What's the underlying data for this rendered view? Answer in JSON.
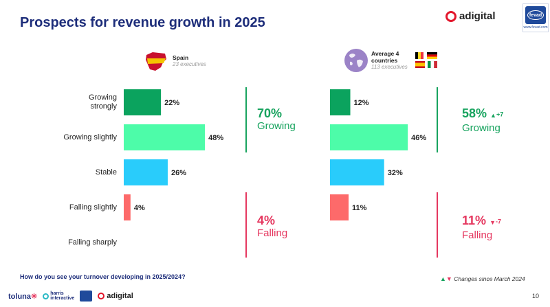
{
  "title": "Prospects for revenue growth in 2025",
  "brand": {
    "adigital": "adigital",
    "fevad_badge": "fevad",
    "fevad_url": "www.fevad.com",
    "toluna": "toluna",
    "harris_line1": "harris",
    "harris_line2": "interactive",
    "adigital_footer": "adigital"
  },
  "groups": {
    "spain": {
      "name": "Spain",
      "sub": "23 executives"
    },
    "average": {
      "name_line1": "Average 4",
      "name_line2": "countries",
      "sub": "113 executives"
    }
  },
  "chart_data": {
    "type": "bar",
    "orientation": "horizontal",
    "categories": [
      "Growing strongly",
      "Growing slightly",
      "Stable",
      "Falling slightly",
      "Falling sharply"
    ],
    "category_lines": [
      [
        "Growing",
        "strongly"
      ],
      [
        "Growing slightly"
      ],
      [
        "Stable"
      ],
      [
        "Falling slightly"
      ],
      [
        "Falling sharply"
      ]
    ],
    "series": [
      {
        "name": "Spain",
        "values": [
          22,
          48,
          26,
          4,
          null
        ],
        "labels": [
          "22%",
          "48%",
          "26%",
          "4%",
          ""
        ]
      },
      {
        "name": "Average 4 countries",
        "values": [
          12,
          46,
          32,
          11,
          null
        ],
        "labels": [
          "12%",
          "46%",
          "32%",
          "11%",
          ""
        ]
      }
    ],
    "colors": [
      "#0ba35e",
      "#4dfca9",
      "#29ccfb",
      "#fd6a6a",
      "#cccccc"
    ]
  },
  "summary": {
    "spain": {
      "growing_pct": "70%",
      "growing_word": "Growing",
      "falling_pct": "4%",
      "falling_word": "Falling"
    },
    "average": {
      "growing_pct": "58%",
      "growing_delta": "+7",
      "growing_word": "Growing",
      "falling_pct": "11%",
      "falling_delta": "-7",
      "falling_word": "Falling"
    }
  },
  "colors": {
    "green": "#17a35e",
    "red": "#e5375f",
    "title": "#1d2d7a"
  },
  "question": "How do you see your turnover developing in 2025/2024?",
  "changes_note": "Changes since March 2024",
  "page_number": "10"
}
